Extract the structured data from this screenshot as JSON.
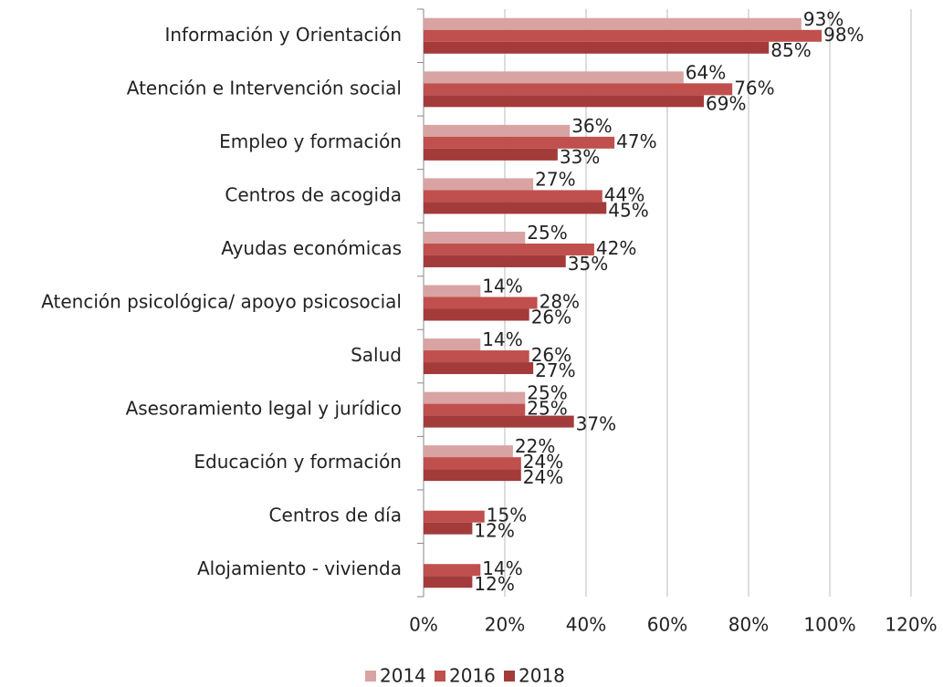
{
  "chart_data": {
    "type": "bar",
    "orientation": "horizontal",
    "categories": [
      "Información y Orientación",
      "Atención e Intervención social",
      "Empleo y formación",
      "Centros de acogida",
      "Ayudas económicas",
      "Atención psicológica/ apoyo psicosocial",
      "Salud",
      "Asesoramiento legal y jurídico",
      "Educación y formación",
      "Centros de día",
      "Alojamiento - vivienda"
    ],
    "series": [
      {
        "name": "2014",
        "color": "#d9a3a3",
        "values": [
          93,
          64,
          36,
          27,
          25,
          14,
          14,
          25,
          22,
          null,
          null
        ],
        "value_labels": [
          "93%",
          "64%",
          "36%",
          "27%",
          "25%",
          "14%",
          "14%",
          "25%",
          "22%",
          null,
          null
        ]
      },
      {
        "name": "2016",
        "color": "#c0504d",
        "values": [
          98,
          76,
          47,
          44,
          42,
          28,
          26,
          25,
          24,
          15,
          14
        ],
        "value_labels": [
          "98%",
          "76%",
          "47%",
          "44%",
          "42%",
          "28%",
          "26%",
          "25%",
          "24%",
          "15%",
          "14%"
        ]
      },
      {
        "name": "2018",
        "color": "#a33b3b",
        "values": [
          85,
          69,
          33,
          45,
          35,
          26,
          27,
          37,
          24,
          12,
          12
        ],
        "value_labels": [
          "85%",
          "69%",
          "33%",
          "45%",
          "35%",
          "26%",
          "27%",
          "37%",
          "24%",
          "12%",
          "12%"
        ]
      }
    ],
    "xlim": [
      0,
      120
    ],
    "xticks": [
      {
        "value": 0,
        "label": "0%"
      },
      {
        "value": 20,
        "label": "20%"
      },
      {
        "value": 40,
        "label": "40%"
      },
      {
        "value": 60,
        "label": "60%"
      },
      {
        "value": 80,
        "label": "80%"
      },
      {
        "value": 100,
        "label": "100%"
      },
      {
        "value": 120,
        "label": "120%"
      }
    ],
    "grid": true,
    "legend": "bottom"
  }
}
